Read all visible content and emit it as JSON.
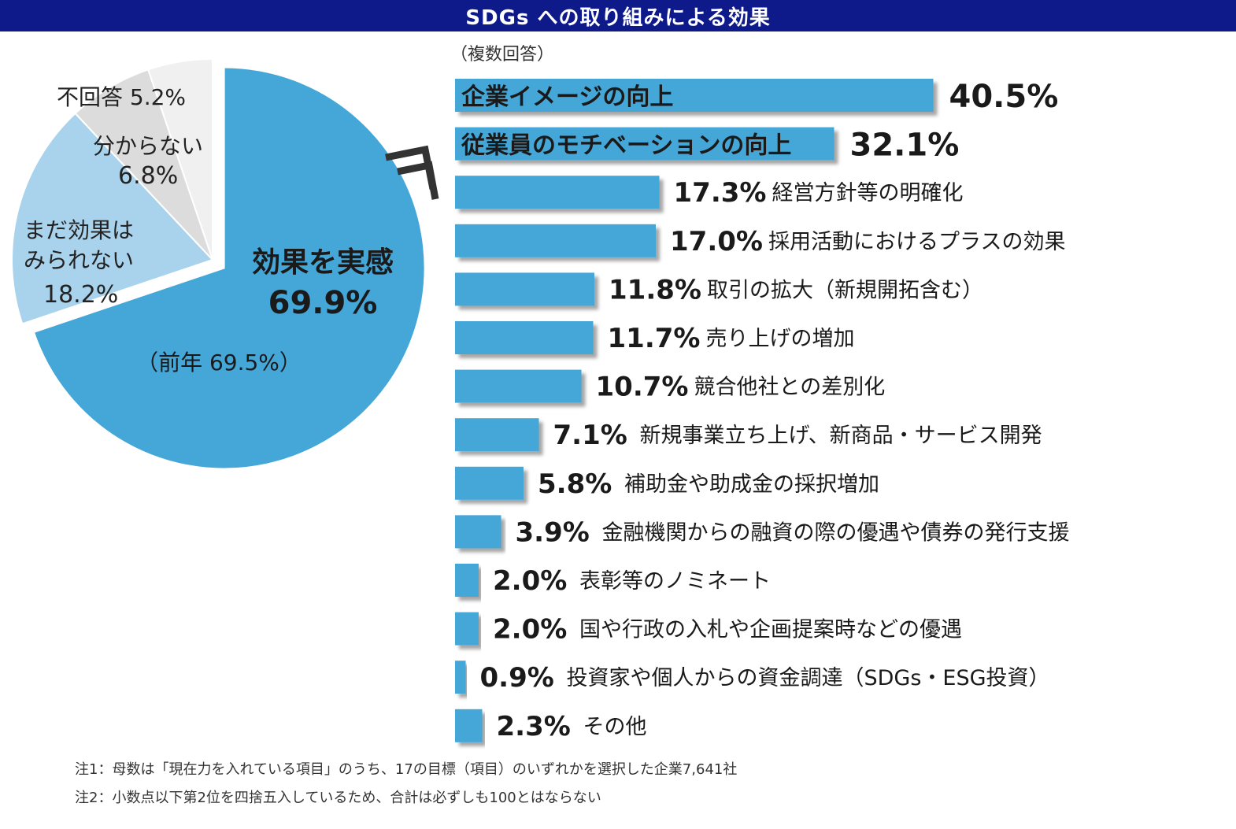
{
  "title": "SDGs への取り組みによる効果",
  "colors": {
    "header_bg": "#0f1a8a",
    "bar": "#45a7d8",
    "pie_effect": "#45a7d8",
    "pie_not_yet": "#a9d3ec",
    "pie_unknown": "#dcdcdc",
    "pie_no_answer": "#f0f0f0"
  },
  "chart_data": [
    {
      "type": "pie",
      "slices": [
        {
          "label": "効果を実感",
          "value": 69.9,
          "value_label": "69.9%",
          "note": "（前年 69.5%）",
          "exploded": true
        },
        {
          "label": "まだ効果は みられない",
          "value": 18.2,
          "value_label": "18.2%"
        },
        {
          "label": "分からない",
          "value": 6.8,
          "value_label": "6.8%"
        },
        {
          "label": "不回答",
          "value": 5.2,
          "value_label": "5.2%"
        }
      ]
    },
    {
      "type": "bar",
      "orientation": "horizontal",
      "subtitle": "（複数回答）",
      "categories": [
        "企業イメージの向上",
        "従業員のモチベーションの向上",
        "経営方針等の明確化",
        "採用活動におけるプラスの効果",
        "取引の拡大（新規開拓含む）",
        "売り上げの増加",
        "競合他社との差別化",
        "新規事業立ち上げ、新商品・サービス開発",
        "補助金や助成金の採択増加",
        "金融機関からの融資の際の優遇や債券の発行支援",
        "表彰等のノミネート",
        "国や行政の入札や企画提案時などの優遇",
        "投資家や個人からの資金調達（SDGs・ESG投資）",
        "その他"
      ],
      "values": [
        40.5,
        32.1,
        17.3,
        17.0,
        11.8,
        11.7,
        10.7,
        7.1,
        5.8,
        3.9,
        2.0,
        2.0,
        0.9,
        2.3
      ],
      "value_labels": [
        "40.5%",
        "32.1%",
        "17.3%",
        "17.0%",
        "11.8%",
        "11.7%",
        "10.7%",
        "7.1%",
        "5.8%",
        "3.9%",
        "2.0%",
        "2.0%",
        "0.9%",
        "2.3%"
      ]
    }
  ],
  "notes": [
    "注1：母数は「現在力を入れている項目」のうち、17の目標（項目）のいずれかを選択した企業7,641社",
    "注2：小数点以下第2位を四捨五入しているため、合計は必ずしも100とはならない"
  ]
}
